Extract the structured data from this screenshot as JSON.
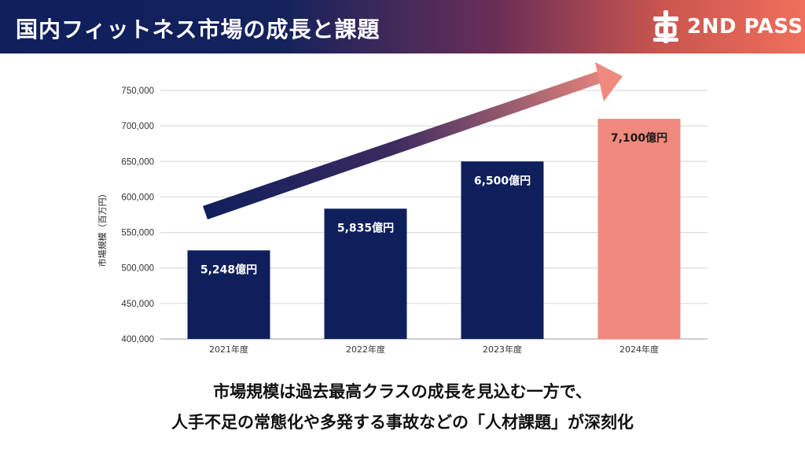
{
  "header": {
    "title": "国内フィットネス市場の成長と課題",
    "logo_text": "2ND PASS",
    "colors": {
      "navy": "#0f1f5c",
      "coral": "#ef6f5b"
    }
  },
  "chart_data": {
    "type": "bar",
    "title": "",
    "xlabel": "",
    "ylabel": "市場規模（百万円）",
    "categories": [
      "2021年度",
      "2022年度",
      "2023年度",
      "2024年度"
    ],
    "values": [
      524800,
      583500,
      650000,
      710000
    ],
    "data_labels": [
      "5,248億円",
      "5,835億円",
      "6,500億円",
      "7,100億円"
    ],
    "ylim": [
      400000,
      750000
    ],
    "yticks": [
      400000,
      450000,
      500000,
      550000,
      600000,
      650000,
      700000,
      750000
    ],
    "ytick_labels": [
      "400,000",
      "450,000",
      "500,000",
      "550,000",
      "600,000",
      "650,000",
      "700,000",
      "750,000"
    ],
    "grid": true,
    "bar_colors": [
      "#0f1f5c",
      "#0f1f5c",
      "#0f1f5c",
      "#f08a7e"
    ],
    "label_colors": [
      "#ffffff",
      "#ffffff",
      "#ffffff",
      "#1a1a1a"
    ],
    "annotation": "upward trend arrow"
  },
  "caption": {
    "line1": "市場規模は過去最高クラスの成長を見込む一方で、",
    "line2": "人手不足の常態化や多発する事故などの「人材課題」が深刻化"
  }
}
